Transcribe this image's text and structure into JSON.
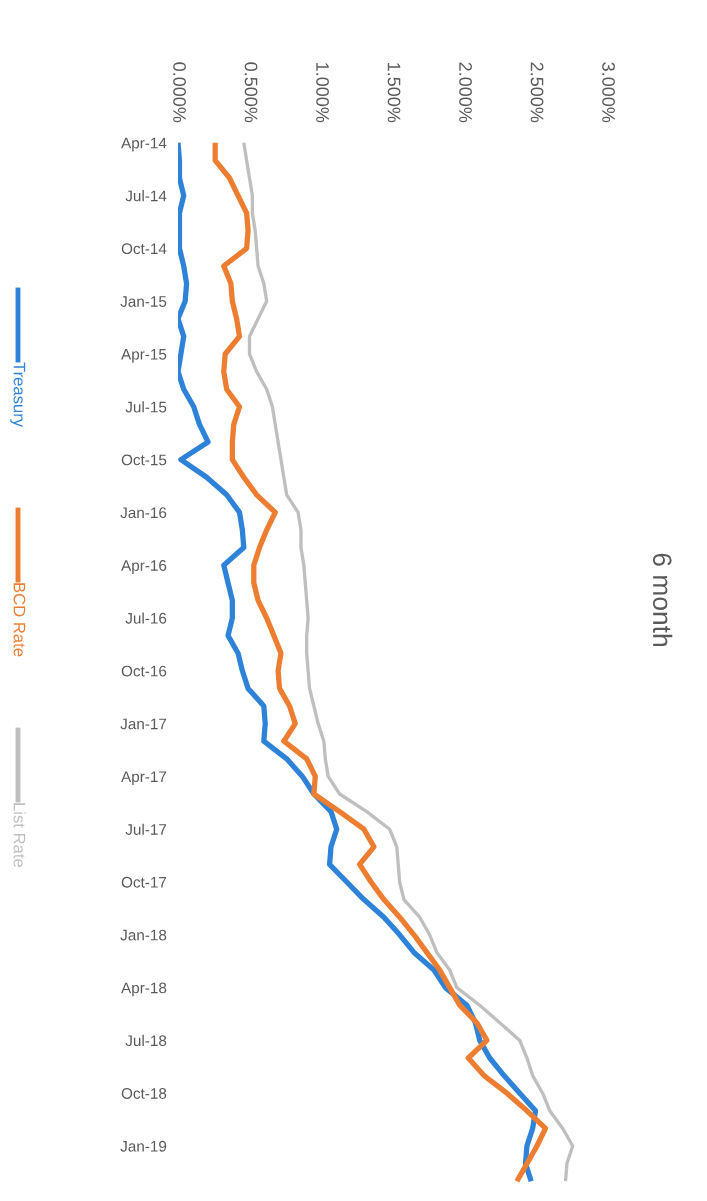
{
  "chart_data": {
    "type": "line",
    "title": "6 month",
    "orientation": "horizontal",
    "legend": "left",
    "categories": [
      "Apr-14",
      null,
      null,
      "Jul-14",
      null,
      null,
      "Oct-14",
      null,
      null,
      "Jan-15",
      null,
      null,
      "Apr-15",
      null,
      null,
      "Jul-15",
      null,
      null,
      "Oct-15",
      null,
      null,
      "Jan-16",
      null,
      null,
      "Apr-16",
      null,
      null,
      "Jul-16",
      null,
      null,
      "Oct-16",
      null,
      null,
      "Jan-17",
      null,
      null,
      "Apr-17",
      null,
      null,
      "Jul-17",
      null,
      null,
      "Oct-17",
      null,
      null,
      "Jan-18",
      null,
      null,
      "Apr-18",
      null,
      null,
      "Jul-18",
      null,
      null,
      "Oct-18",
      null,
      null,
      "Jan-19",
      null,
      null
    ],
    "xlim": [
      0,
      3
    ],
    "xticks": [
      {
        "value": 0,
        "label": "0.000%"
      },
      {
        "value": 0.5,
        "label": "0.500%"
      },
      {
        "value": 1,
        "label": "1.000%"
      },
      {
        "value": 1.5,
        "label": "1.500%"
      },
      {
        "value": 2,
        "label": "2.000%"
      },
      {
        "value": 2.5,
        "label": "2.500%"
      },
      {
        "value": 3,
        "label": "3.000%"
      }
    ],
    "grid": false,
    "series": [
      {
        "name": "Treasury",
        "color": "#2e83d8",
        "values": [
          0.0,
          0.01,
          0.01,
          0.04,
          0.01,
          0.01,
          0.01,
          0.04,
          0.06,
          0.05,
          0.0,
          0.04,
          0.02,
          0.0,
          0.04,
          0.11,
          0.15,
          0.21,
          0.02,
          0.2,
          0.34,
          0.43,
          0.45,
          0.46,
          0.32,
          0.35,
          0.38,
          0.38,
          0.35,
          0.42,
          0.45,
          0.49,
          0.6,
          0.61,
          0.6,
          0.76,
          0.87,
          0.95,
          1.07,
          1.11,
          1.07,
          1.06,
          1.18,
          1.3,
          1.44,
          1.55,
          1.65,
          1.79,
          1.87,
          2.02,
          2.08,
          2.11,
          2.18,
          2.28,
          2.39,
          2.5,
          2.48,
          2.44,
          2.43,
          2.47
        ]
      },
      {
        "name": "BCD Rate",
        "color": "#ed7d31",
        "values": [
          0.26,
          0.26,
          0.36,
          0.42,
          0.48,
          0.49,
          0.48,
          0.32,
          0.37,
          0.38,
          0.41,
          0.43,
          0.33,
          0.32,
          0.34,
          0.43,
          0.39,
          0.38,
          0.38,
          0.46,
          0.55,
          0.68,
          0.62,
          0.57,
          0.53,
          0.53,
          0.56,
          0.62,
          0.67,
          0.72,
          0.7,
          0.71,
          0.78,
          0.82,
          0.74,
          0.9,
          0.96,
          0.95,
          1.13,
          1.3,
          1.37,
          1.27,
          1.35,
          1.44,
          1.55,
          1.65,
          1.74,
          1.83,
          1.9,
          1.97,
          2.09,
          2.16,
          2.03,
          2.14,
          2.3,
          2.44,
          2.57,
          2.51,
          2.44,
          2.37
        ]
      },
      {
        "name": "List Rate",
        "color": "#bfbfbf",
        "values": [
          0.46,
          0.48,
          0.5,
          0.52,
          0.52,
          0.54,
          0.55,
          0.56,
          0.6,
          0.62,
          0.56,
          0.5,
          0.5,
          0.55,
          0.62,
          0.66,
          0.68,
          0.7,
          0.72,
          0.74,
          0.76,
          0.84,
          0.86,
          0.86,
          0.88,
          0.89,
          0.9,
          0.91,
          0.9,
          0.9,
          0.91,
          0.92,
          0.95,
          0.98,
          1.02,
          1.03,
          1.05,
          1.13,
          1.32,
          1.48,
          1.53,
          1.54,
          1.55,
          1.58,
          1.69,
          1.76,
          1.81,
          1.9,
          1.95,
          2.11,
          2.25,
          2.39,
          2.44,
          2.48,
          2.55,
          2.6,
          2.69,
          2.76,
          2.72,
          2.71
        ]
      }
    ]
  }
}
